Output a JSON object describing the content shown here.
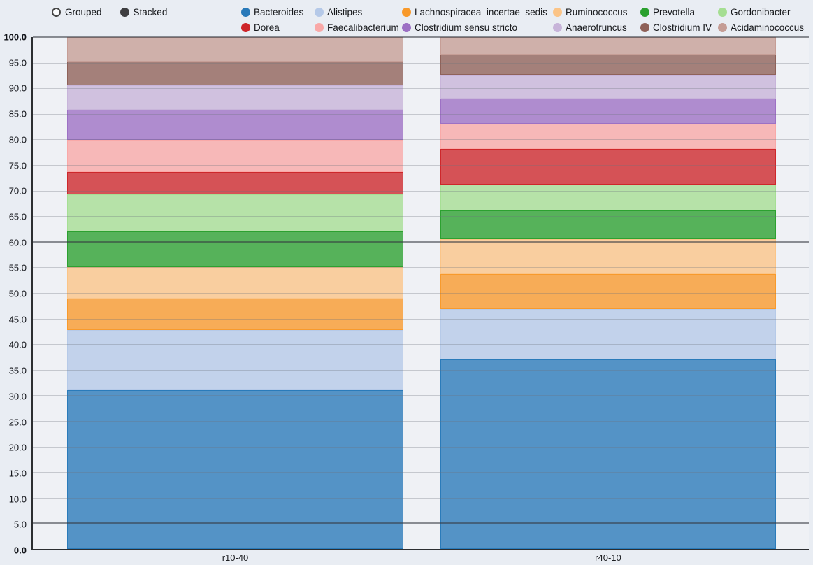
{
  "controls": {
    "mode_options": [
      {
        "label": "Grouped",
        "selected": false
      },
      {
        "label": "Stacked",
        "selected": true
      }
    ]
  },
  "chart_data": {
    "type": "bar",
    "stacked": true,
    "categories": [
      "r10-40",
      "r40-10"
    ],
    "series": [
      {
        "name": "Bacteroides",
        "color": "#2879b9",
        "values": [
          31.0,
          37.0
        ]
      },
      {
        "name": "Alistipes",
        "color": "#b5c9e8",
        "values": [
          11.8,
          9.9
        ]
      },
      {
        "name": "Lachnospiracea_incertae_sedis",
        "color": "#f8992a",
        "values": [
          6.1,
          6.8
        ]
      },
      {
        "name": "Ruminococcus",
        "color": "#fbc487",
        "values": [
          6.1,
          6.8
        ]
      },
      {
        "name": "Prevotella",
        "color": "#2aa02e",
        "values": [
          7.0,
          5.6
        ]
      },
      {
        "name": "Gordonibacter",
        "color": "#a5de92",
        "values": [
          7.3,
          5.1
        ]
      },
      {
        "name": "Dorea",
        "color": "#cd2529",
        "values": [
          4.3,
          7.0
        ]
      },
      {
        "name": "Faecalibacterium",
        "color": "#f9a8a7",
        "values": [
          6.3,
          4.8
        ]
      },
      {
        "name": "Clostridium sensu stricto",
        "color": "#9c70c4",
        "values": [
          5.9,
          5.0
        ]
      },
      {
        "name": "Anaerotruncus",
        "color": "#c7b4d9",
        "values": [
          4.8,
          4.6
        ]
      },
      {
        "name": "Clostridium IV",
        "color": "#8e6057",
        "values": [
          4.6,
          4.0
        ]
      },
      {
        "name": "Acidaminococcus",
        "color": "#c59d95",
        "values": [
          4.8,
          3.4
        ]
      }
    ],
    "ylim": [
      0,
      100
    ],
    "ytick_step": 5,
    "ytick_labels": [
      "0.0",
      "5.0",
      "10.0",
      "15.0",
      "20.0",
      "25.0",
      "30.0",
      "35.0",
      "40.0",
      "45.0",
      "50.0",
      "55.0",
      "60.0",
      "65.0",
      "70.0",
      "75.0",
      "80.0",
      "85.0",
      "90.0",
      "95.0",
      "100.0"
    ],
    "emphasized_gridlines": [
      5,
      60,
      100
    ],
    "grid": true,
    "legend_position": "top",
    "fill_alpha": 0.78
  }
}
